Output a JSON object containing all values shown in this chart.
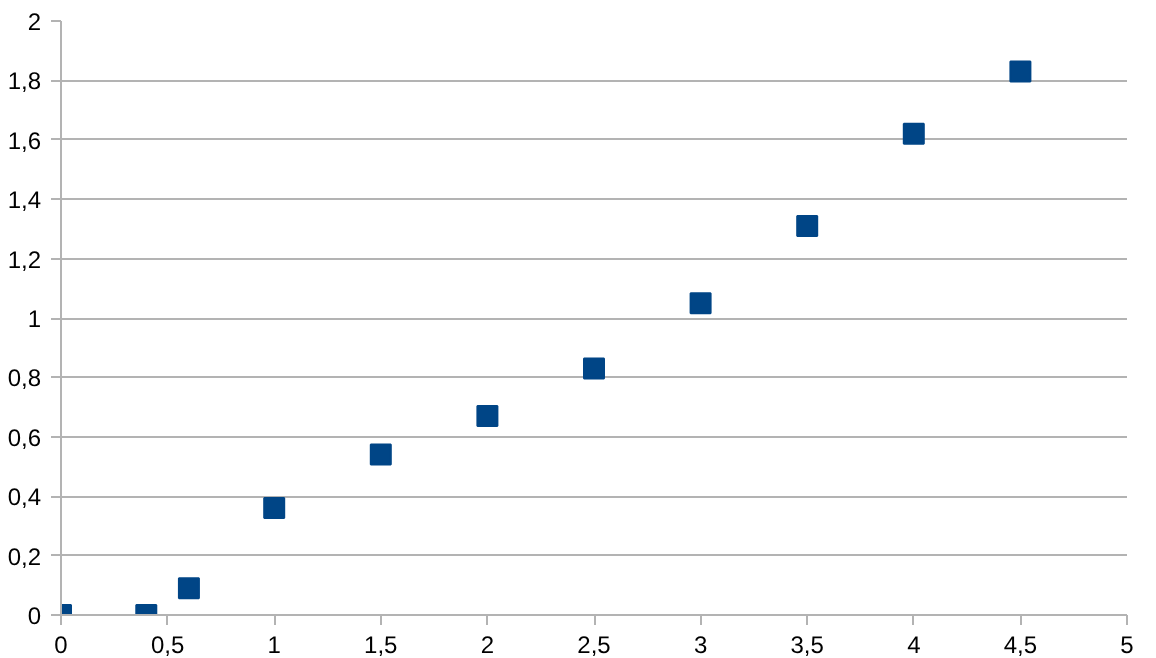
{
  "chart_data": {
    "type": "scatter",
    "x": [
      0,
      0.4,
      0.6,
      1,
      1.5,
      2,
      2.5,
      3,
      3.5,
      4,
      4.5
    ],
    "values": [
      0,
      0,
      0.09,
      0.36,
      0.54,
      0.67,
      0.83,
      1.05,
      1.31,
      1.62,
      1.83
    ],
    "color": "#004586",
    "marker": "square",
    "grid": "y",
    "xlim": [
      0,
      5
    ],
    "xticks": [
      0,
      {
        "value": 0.5,
        "label": "0,5"
      },
      1,
      {
        "value": 1.5,
        "label": "1,5"
      },
      2,
      {
        "value": 2.5,
        "label": "2,5"
      },
      3,
      {
        "value": 3.5,
        "label": "3,5"
      },
      4,
      {
        "value": 4.5,
        "label": "4,5"
      },
      5
    ],
    "ylim": [
      0,
      2
    ],
    "yticks": [
      0,
      {
        "value": 0.2,
        "label": "0,2"
      },
      {
        "value": 0.4,
        "label": "0,4"
      },
      {
        "value": 0.6,
        "label": "0,6"
      },
      {
        "value": 0.8,
        "label": "0,8"
      },
      1,
      {
        "value": 1.2,
        "label": "1,2"
      },
      {
        "value": 1.4,
        "label": "1,4"
      },
      {
        "value": 1.6,
        "label": "1,6"
      },
      {
        "value": 1.8,
        "label": "1,8"
      },
      2
    ]
  }
}
